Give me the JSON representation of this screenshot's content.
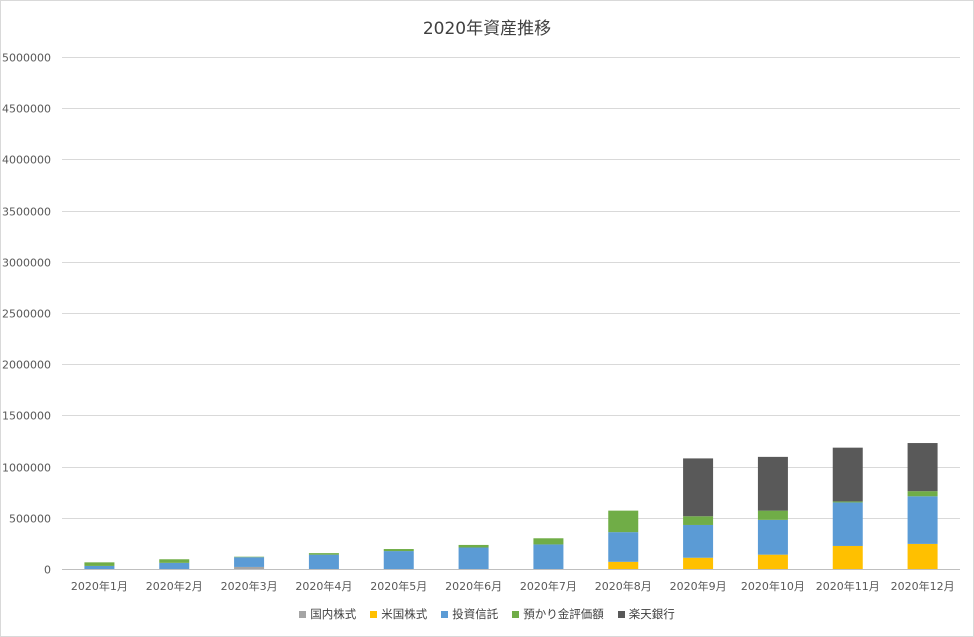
{
  "chart_data": {
    "type": "bar",
    "stacked": true,
    "title": "2020年資産推移",
    "xlabel": "",
    "ylabel": "",
    "ylim": [
      0,
      5000000
    ],
    "yticks": [
      0,
      500000,
      1000000,
      1500000,
      2000000,
      2500000,
      3000000,
      3500000,
      4000000,
      4500000,
      5000000
    ],
    "ytick_labels": [
      "0",
      "500000",
      "1000000",
      "1500000",
      "2000000",
      "2500000",
      "3000000",
      "3500000",
      "4000000",
      "4500000",
      "5000000"
    ],
    "grid": true,
    "legend_position": "bottom",
    "categories": [
      "2020年1月",
      "2020年2月",
      "2020年3月",
      "2020年4月",
      "2020年5月",
      "2020年6月",
      "2020年7月",
      "2020年8月",
      "2020年9月",
      "2020年10月",
      "2020年11月",
      "2020年12月"
    ],
    "series": [
      {
        "name": "国内株式",
        "color": "#a5a5a5",
        "values": [
          0,
          0,
          20000,
          0,
          0,
          0,
          0,
          0,
          0,
          0,
          0,
          0
        ]
      },
      {
        "name": "米国株式",
        "color": "#ffc000",
        "values": [
          0,
          0,
          0,
          0,
          0,
          0,
          0,
          70000,
          110000,
          140000,
          225000,
          245000
        ]
      },
      {
        "name": "投資信託",
        "color": "#5b9bd5",
        "values": [
          30000,
          60000,
          95000,
          140000,
          175000,
          210000,
          240000,
          290000,
          320000,
          340000,
          425000,
          465000
        ]
      },
      {
        "name": "預かり金評価額",
        "color": "#70ad47",
        "values": [
          35000,
          35000,
          5000,
          15000,
          20000,
          25000,
          60000,
          210000,
          85000,
          90000,
          10000,
          50000
        ]
      },
      {
        "name": "楽天銀行",
        "color": "#595959",
        "values": [
          0,
          0,
          0,
          0,
          0,
          0,
          0,
          0,
          565000,
          525000,
          525000,
          470000
        ]
      }
    ]
  }
}
